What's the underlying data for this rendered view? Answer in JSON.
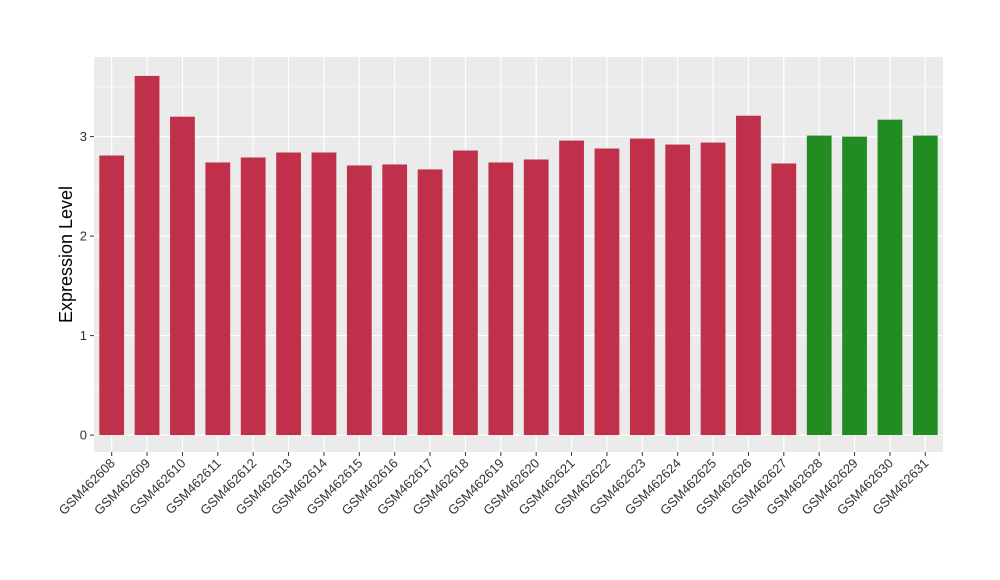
{
  "chart_data": {
    "type": "bar",
    "title": "",
    "xlabel": "",
    "ylabel": "Expression Level",
    "ylim": [
      -0.17,
      3.8
    ],
    "yticks": [
      0,
      1,
      2,
      3
    ],
    "grid": true,
    "legend": "none",
    "categories": [
      "GSM462608",
      "GSM462609",
      "GSM462610",
      "GSM462611",
      "GSM462612",
      "GSM462613",
      "GSM462614",
      "GSM462615",
      "GSM462616",
      "GSM462617",
      "GSM462618",
      "GSM462619",
      "GSM462620",
      "GSM462621",
      "GSM462622",
      "GSM462623",
      "GSM462624",
      "GSM462625",
      "GSM462626",
      "GSM462627",
      "GSM462628",
      "GSM462629",
      "GSM462630",
      "GSM462631"
    ],
    "values": [
      2.81,
      3.61,
      3.2,
      2.74,
      2.79,
      2.84,
      2.84,
      2.71,
      2.72,
      2.67,
      2.86,
      2.74,
      2.77,
      2.96,
      2.88,
      2.98,
      2.92,
      2.94,
      3.21,
      2.73,
      3.01,
      3.0,
      3.17,
      3.01
    ],
    "bar_colors": [
      "#c0304a",
      "#c0304a",
      "#c0304a",
      "#c0304a",
      "#c0304a",
      "#c0304a",
      "#c0304a",
      "#c0304a",
      "#c0304a",
      "#c0304a",
      "#c0304a",
      "#c0304a",
      "#c0304a",
      "#c0304a",
      "#c0304a",
      "#c0304a",
      "#c0304a",
      "#c0304a",
      "#c0304a",
      "#c0304a",
      "#228b22",
      "#228b22",
      "#228b22",
      "#228b22"
    ],
    "panel_background": "#ebebeb",
    "grid_color": "#ffffff"
  }
}
